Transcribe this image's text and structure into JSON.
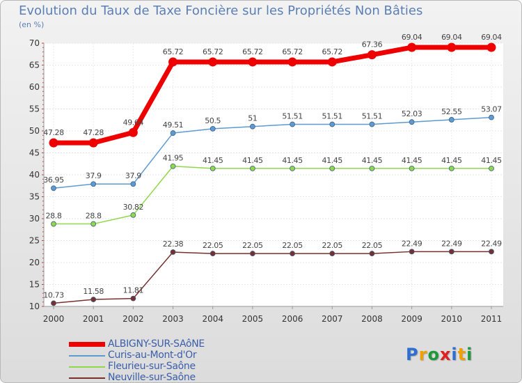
{
  "chart_data": {
    "type": "line",
    "title": "Evolution du Taux de Taxe Foncière sur les Propriétés Non Bâties",
    "ylabel": "(en %)",
    "xlabel": "",
    "categories": [
      "2000",
      "2001",
      "2002",
      "2003",
      "2004",
      "2005",
      "2006",
      "2007",
      "2008",
      "2009",
      "2010",
      "2011"
    ],
    "y_ticks": [
      "10",
      "15",
      "20",
      "25",
      "30",
      "35",
      "40",
      "45",
      "50",
      "55",
      "60",
      "65",
      "70"
    ],
    "ylim": [
      10,
      70
    ],
    "series": [
      {
        "name": "ALBIGNY-SUR-SAôNE",
        "color": "#ee0000",
        "values": [
          47.28,
          47.28,
          49.64,
          65.72,
          65.72,
          65.72,
          65.72,
          65.72,
          67.36,
          69.04,
          69.04,
          69.04
        ],
        "labels": [
          "47.28",
          "47.28",
          "49.64",
          "65.72",
          "65.72",
          "65.72",
          "65.72",
          "65.72",
          "67.36",
          "69.04",
          "69.04",
          "69.04"
        ]
      },
      {
        "name": "Curis-au-Mont-d'Or",
        "color": "#5d9ad2",
        "values": [
          36.95,
          37.9,
          37.9,
          49.51,
          50.5,
          51,
          51.51,
          51.51,
          51.51,
          52.03,
          52.55,
          53.07
        ],
        "labels": [
          "36.95",
          "37.9",
          "37.9",
          "49.51",
          "50.5",
          "51",
          "51.51",
          "51.51",
          "51.51",
          "52.03",
          "52.55",
          "53.07"
        ]
      },
      {
        "name": "Fleurieu-sur-Saône",
        "color": "#8fd84a",
        "values": [
          28.8,
          28.8,
          30.82,
          41.95,
          41.45,
          41.45,
          41.45,
          41.45,
          41.45,
          41.45,
          41.45,
          41.45
        ],
        "labels": [
          "28.8",
          "28.8",
          "30.82",
          "41.95",
          "41.45",
          "41.45",
          "41.45",
          "41.45",
          "41.45",
          "41.45",
          "41.45",
          "41.45"
        ]
      },
      {
        "name": "Neuville-sur-Saône",
        "color": "#7a2f2f",
        "values": [
          10.73,
          11.58,
          11.81,
          22.38,
          22.05,
          22.05,
          22.05,
          22.05,
          22.05,
          22.49,
          22.49,
          22.49
        ],
        "labels": [
          "10.73",
          "11.58",
          "11.81",
          "22.38",
          "22.05",
          "22.05",
          "22.05",
          "22.05",
          "22.05",
          "22.49",
          "22.49",
          "22.49"
        ]
      }
    ],
    "legend_position": "bottom-left"
  },
  "logo": {
    "letters": [
      "P",
      "r",
      "o",
      "x",
      "i",
      "t",
      "i"
    ],
    "colors": [
      "#2e6fd0",
      "#f0a000",
      "#1f9a3a",
      "#e02020",
      "#2e6fd0",
      "#f0a000",
      "#1f9a3a"
    ]
  }
}
